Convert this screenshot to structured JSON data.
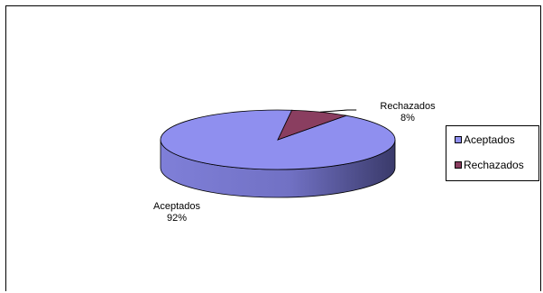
{
  "chart_data": {
    "type": "pie",
    "style": "3d",
    "title": "",
    "categories": [
      "Aceptados",
      "Rechazados"
    ],
    "values": [
      92,
      8
    ],
    "labels": [
      {
        "name": "Aceptados",
        "value": "92%"
      },
      {
        "name": "Rechazados",
        "value": "8%"
      }
    ],
    "legend": {
      "placement": "right",
      "entries": [
        "Aceptados",
        "Rechazados"
      ]
    },
    "colors": {
      "Aceptados": "#8f8fef",
      "Rechazados": "#8a3e60"
    }
  }
}
